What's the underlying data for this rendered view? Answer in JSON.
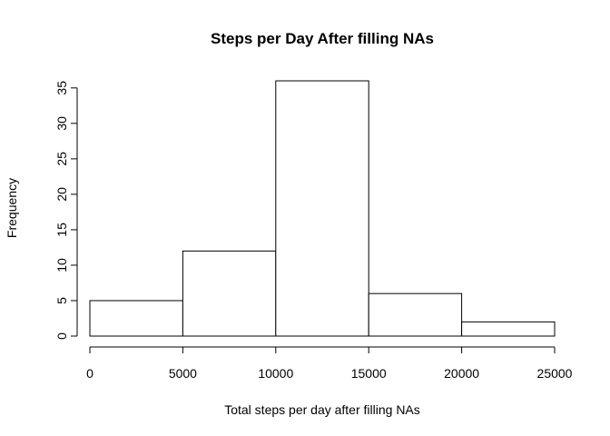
{
  "chart_data": {
    "type": "bar",
    "subtype": "histogram",
    "title": "Steps per Day After filling NAs",
    "xlabel": "Total steps per day after filling NAs",
    "ylabel": "Frequency",
    "bins": [
      {
        "start": 0,
        "end": 5000,
        "value": 5
      },
      {
        "start": 5000,
        "end": 10000,
        "value": 12
      },
      {
        "start": 10000,
        "end": 15000,
        "value": 36
      },
      {
        "start": 15000,
        "end": 20000,
        "value": 6
      },
      {
        "start": 20000,
        "end": 25000,
        "value": 2
      }
    ],
    "xlim": [
      0,
      25000
    ],
    "ylim": [
      0,
      36
    ],
    "x_ticks": [
      "0",
      "5000",
      "10000",
      "15000",
      "20000",
      "25000"
    ],
    "y_ticks": [
      "0",
      "5",
      "10",
      "15",
      "20",
      "25",
      "30",
      "35"
    ],
    "grid": false,
    "bar_fill": "#ffffff",
    "bar_stroke": "#000000"
  }
}
